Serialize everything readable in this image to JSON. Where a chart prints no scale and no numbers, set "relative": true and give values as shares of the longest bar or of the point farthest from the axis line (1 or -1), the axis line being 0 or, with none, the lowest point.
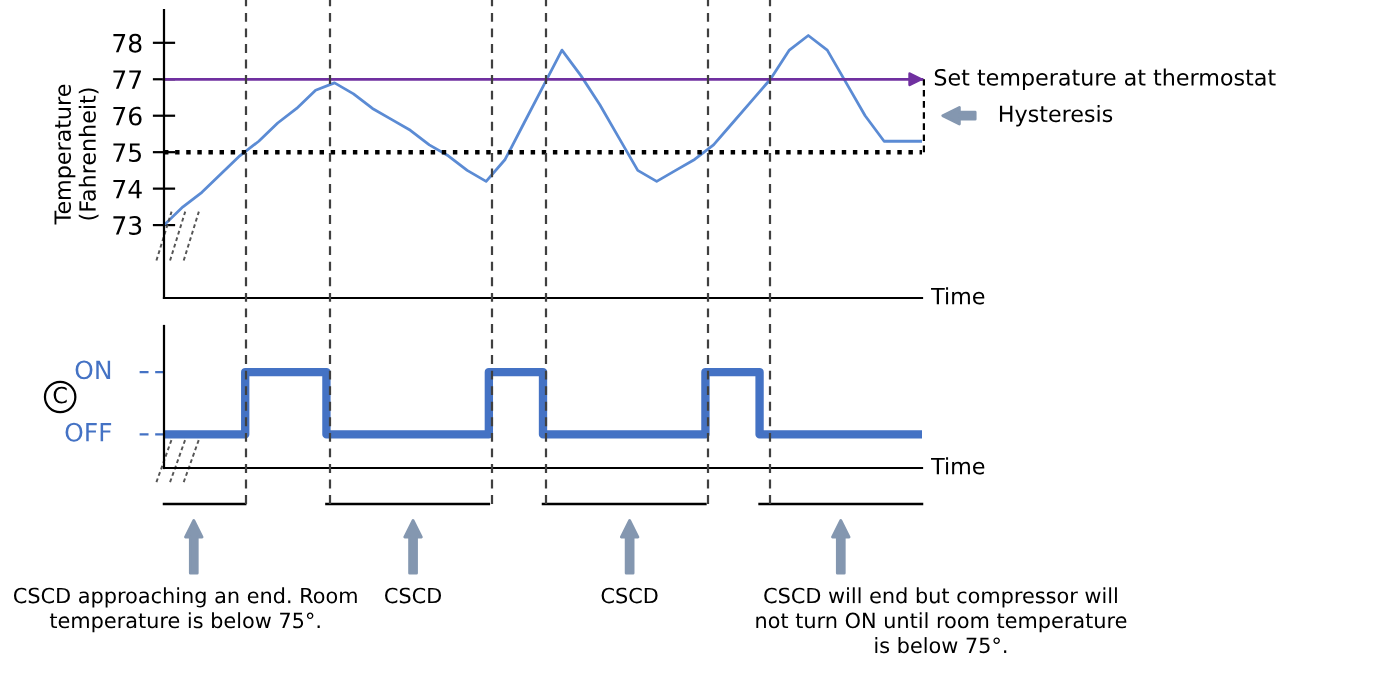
{
  "chart_data": [
    {
      "type": "line",
      "ylabel": "Temperature\n(Fahrenheit)",
      "xlabel": "Time",
      "categories": [
        null,
        null,
        null,
        null,
        null,
        null,
        null,
        null,
        null,
        null,
        null,
        null,
        null,
        null,
        null,
        null,
        null,
        null,
        null,
        null,
        null,
        null,
        null,
        null,
        null,
        null,
        null,
        null,
        null,
        null,
        null,
        null,
        null,
        null,
        null,
        null,
        null,
        null,
        null,
        null,
        null
      ],
      "series": [
        {
          "color": "#5b8bd4",
          "values": [
            73.0,
            73.5,
            73.9,
            74.4,
            74.9,
            75.3,
            75.8,
            76.2,
            76.7,
            76.9,
            76.6,
            76.2,
            75.9,
            75.6,
            75.2,
            74.9,
            74.5,
            74.2,
            74.8,
            75.8,
            76.8,
            77.8,
            77.1,
            76.3,
            75.4,
            74.5,
            74.2,
            74.5,
            74.8,
            75.2,
            75.8,
            76.4,
            77.0,
            77.8,
            78.2,
            77.8,
            76.9,
            76.0,
            75.3,
            75.3,
            75.3
          ]
        }
      ],
      "ylim": [
        71,
        78.9
      ],
      "yticks": [
        73,
        74,
        75,
        76,
        77,
        78
      ],
      "ref_lines": [
        {
          "axis": "y",
          "value": 77,
          "label": "Set temperature at thermostat",
          "color": "#7030a0",
          "line_style": "solid"
        },
        {
          "axis": "y",
          "value": 75,
          "color": "#000000",
          "line_style": "dotted"
        }
      ],
      "annotations": [
        "Hysteresis"
      ],
      "tick_labels": "y",
      "grid": false,
      "legend": false,
      "marker": "none",
      "line_style": "solid"
    },
    {
      "type": "step",
      "ylabel": "C",
      "xlabel": "Time",
      "categories": [
        null,
        null,
        null,
        null,
        null,
        null,
        null,
        null,
        null,
        null,
        null,
        null,
        null,
        null,
        null,
        null,
        null,
        null,
        null,
        null,
        null,
        null,
        null,
        null,
        null,
        null,
        null,
        null,
        null
      ],
      "series": [
        {
          "color": "#4472c4",
          "values": [
            0.35,
            0.35,
            0.35,
            1,
            1,
            1,
            0.35,
            0.35,
            0.35,
            0.35,
            0.35,
            0.35,
            1,
            1,
            0.35,
            0.35,
            0.35,
            0.35,
            0.35,
            0.35,
            1,
            1,
            0.35,
            0.35,
            0.35,
            0.35,
            0.35,
            0.35,
            0.35
          ]
        }
      ],
      "relative": true,
      "annotations": [
        "ON",
        "OFF",
        "CSCD approaching an end. Room\ntemperature is below 75°.",
        "CSCD",
        "CSCD",
        "CSCD will end but compressor will\nnot turn ON until room temperature\nis below 75°."
      ],
      "tick_labels": false,
      "grid": false,
      "legend": false,
      "marker": "none",
      "line_style": "solid"
    }
  ]
}
